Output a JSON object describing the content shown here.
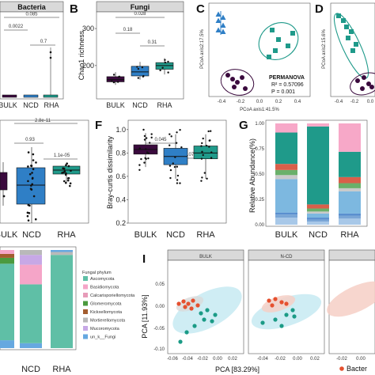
{
  "colors": {
    "bulk": "#3a0a3d",
    "ncd": "#2f7fc6",
    "rha": "#1f9a8a",
    "fungi_box": "#b0b0b0",
    "panel_c_blue": "#2f7fc6",
    "panel_c_teal": "#1f9a8a",
    "panel_c_purple": "#3a0a3d",
    "bacteria_dot": "#e5502f",
    "fungi_dot": "#1b9b86"
  },
  "chart_data": [
    {
      "panel": "A",
      "type": "box",
      "strip_title": "Bacteria",
      "categories": [
        "BULK",
        "NCD",
        "RHA"
      ],
      "ylim": [
        0,
        1
      ],
      "comparisons": [
        {
          "label": "0.0022",
          "pair": [
            "BULK",
            "NCD"
          ]
        },
        {
          "label": "0.7",
          "pair": [
            "NCD",
            "RHA"
          ]
        },
        {
          "label": "0.085",
          "pair": [
            "BULK",
            "RHA"
          ]
        }
      ],
      "medians": [
        0.03,
        0.03,
        0.03
      ],
      "outlier_rha": [
        0.12,
        0.22
      ]
    },
    {
      "panel": "B",
      "type": "box",
      "strip_title": "Fungi",
      "ylabel": "Chao1 richness",
      "categories": [
        "BULK",
        "NCD",
        "RHA"
      ],
      "yticks": [
        200,
        300
      ],
      "ylim": [
        110,
        345
      ],
      "boxes": [
        {
          "q1": 156,
          "median": 162,
          "q3": 170,
          "min": 148,
          "max": 182
        },
        {
          "q1": 172,
          "median": 183,
          "q3": 198,
          "min": 162,
          "max": 210
        },
        {
          "q1": 190,
          "median": 200,
          "q3": 208,
          "min": 176,
          "max": 220
        }
      ],
      "comparisons": [
        {
          "label": "0.18",
          "pair": [
            "BULK",
            "NCD"
          ]
        },
        {
          "label": "0.31",
          "pair": [
            "NCD",
            "RHA"
          ]
        },
        {
          "label": "0.028",
          "pair": [
            "BULK",
            "RHA"
          ]
        }
      ]
    },
    {
      "panel": "C",
      "type": "scatter",
      "xlabel": "PCoA axis1:41.5%",
      "ylabel": "PCoA axis2:17.5%",
      "xticks": [
        "-0.4",
        "-0.2",
        "0.0",
        "0.2",
        "0.4"
      ],
      "annotation": [
        "PERMANOVA",
        "R² = 0.57096",
        "P = 0.001"
      ]
    },
    {
      "panel": "D",
      "type": "scatter",
      "ylabel": "PCoA axis2:15.6%",
      "xticks": [
        "-0.4",
        "-0.2",
        "0.0"
      ]
    },
    {
      "panel": "E",
      "type": "box",
      "categories": [
        "BULK",
        "NCD",
        "RHA"
      ],
      "comparisons": [
        {
          "label": "0.93",
          "pair": [
            "BULK",
            "NCD"
          ]
        },
        {
          "label": "1.1e-05",
          "pair": [
            "NCD",
            "RHA"
          ]
        },
        {
          "label": "2.8e-11",
          "pair": [
            "BULK",
            "RHA"
          ]
        }
      ]
    },
    {
      "panel": "F",
      "type": "box",
      "ylabel": "Bray-curtis dissimilarity",
      "categories": [
        "BULK",
        "NCD",
        "RHA"
      ],
      "yticks": [
        0.2,
        0.4,
        0.6,
        0.8,
        1.0
      ],
      "ylim": [
        0.2,
        1.08
      ],
      "boxes": [
        {
          "q1": 0.79,
          "median": 0.83,
          "q3": 0.87,
          "min": 0.68,
          "max": 0.97
        },
        {
          "q1": 0.7,
          "median": 0.77,
          "q3": 0.84,
          "min": 0.58,
          "max": 0.96
        },
        {
          "q1": 0.75,
          "median": 0.8,
          "q3": 0.86,
          "min": 0.58,
          "max": 0.96
        }
      ],
      "comparisons": [
        {
          "label": "0.045",
          "pair": [
            "BULK",
            "NCD"
          ]
        },
        {
          "label": "0.073",
          "pair": [
            "NCD",
            "RHA"
          ]
        }
      ]
    },
    {
      "panel": "G",
      "type": "bar",
      "ylabel": "Relative Abundance(%)",
      "categories": [
        "BULK",
        "NCD",
        "RHA"
      ],
      "yticks": [
        "0.00",
        "0.25",
        "0.50",
        "0.75",
        "1.00"
      ],
      "stack_colors": [
        "#a8c8e8",
        "#7aa6d6",
        "#5a8fcf",
        "#7db8e0",
        "#c9c9c9",
        "#6ab06a",
        "#d95f4a",
        "#1f9a8a",
        "#f7a8c8"
      ],
      "stacks": [
        [
          0.07,
          0.03,
          0.02,
          0.33,
          0.04,
          0.05,
          0.06,
          0.31,
          0.09
        ],
        [
          0.03,
          0.02,
          0.02,
          0.04,
          0.02,
          0.03,
          0.04,
          0.77,
          0.03
        ],
        [
          0.06,
          0.03,
          0.02,
          0.22,
          0.03,
          0.05,
          0.06,
          0.25,
          0.28
        ]
      ]
    },
    {
      "panel": "H",
      "type": "bar",
      "categories": [
        "NCD",
        "RHA"
      ],
      "legend_title": "Fungal phylum",
      "legend": [
        {
          "name": "Ascomycota",
          "color": "#5fbfa6"
        },
        {
          "name": "Basidiomycota",
          "color": "#f5a5c8"
        },
        {
          "name": "Calcarisporiellomycota",
          "color": "#e79cb9"
        },
        {
          "name": "Glomeromycota",
          "color": "#4b9a3e"
        },
        {
          "name": "Kickxellomycota",
          "color": "#a35d2f"
        },
        {
          "name": "Mortierellomycota",
          "color": "#b9b9b9"
        },
        {
          "name": "Mucoromycota",
          "color": "#c7a8e6"
        },
        {
          "name": "un_k__Fungi",
          "color": "#66a8e0"
        }
      ],
      "stacks": [
        {
          "label": "",
          "values": [
            0.08,
            0.78,
            0.06,
            0.04,
            0.04
          ]
        },
        {
          "label": "NCD",
          "values": [
            0.05,
            0.6,
            0.2,
            0.1,
            0.05
          ]
        },
        {
          "label": "RHA",
          "values": [
            0.95,
            0.03,
            0.02
          ]
        }
      ]
    },
    {
      "panel": "I",
      "type": "scatter",
      "facets": [
        "BULK",
        "N-CD",
        ""
      ],
      "xlabel": "PCA [83.29%]",
      "ylabel": "PCA [11.93%]",
      "xticks": [
        "-0.06",
        "-0.04",
        "-0.02",
        "0.00",
        "0.02"
      ],
      "xticks2": [
        "-0.04",
        "-0.02",
        "0.00",
        "0.02"
      ],
      "xticks3": [
        "-0.02",
        "0.00"
      ],
      "yticks": [
        "0.05",
        "0.00",
        "-0.05",
        "-0.10"
      ],
      "legend": [
        {
          "name": "Bacter",
          "color": "#e5502f"
        }
      ]
    }
  ],
  "panel_labels": [
    "B",
    "C",
    "D",
    "F",
    "G",
    "I"
  ]
}
